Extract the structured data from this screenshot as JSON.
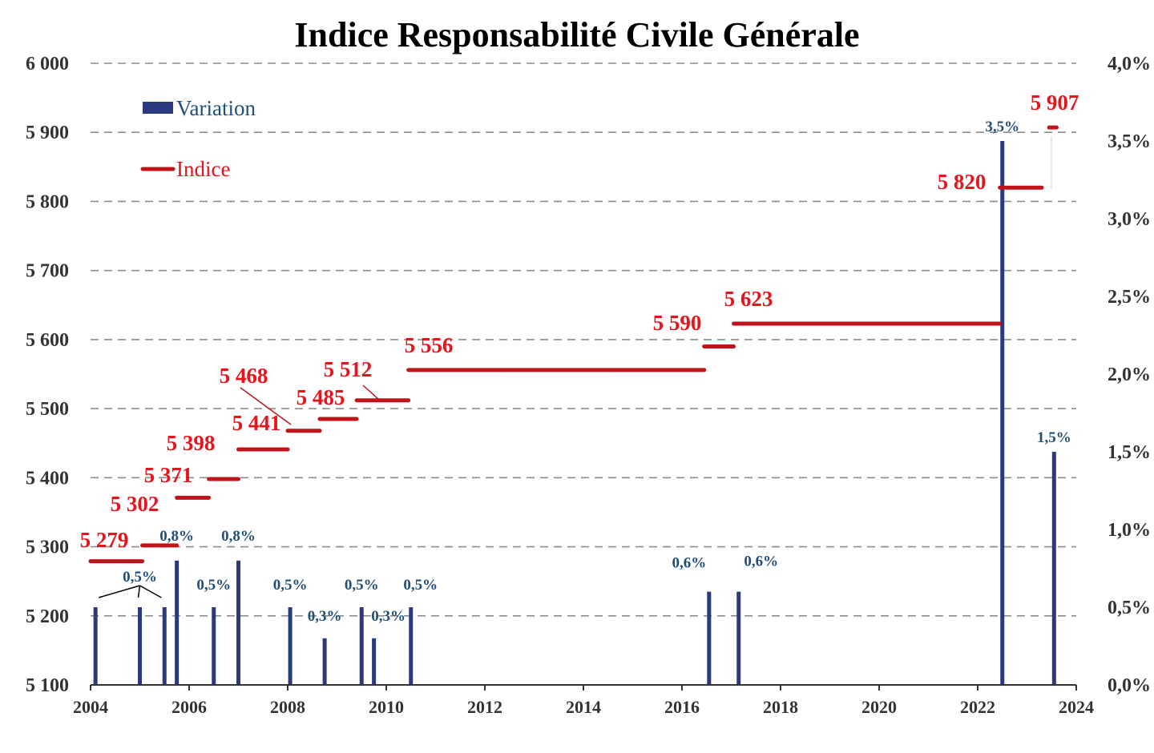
{
  "chart_data": {
    "type": "bar+step-line",
    "title": "Indice Responsabilité Civile Générale",
    "xlim": [
      2004,
      2024
    ],
    "x_ticks": [
      "2004",
      "2006",
      "2008",
      "2010",
      "2012",
      "2014",
      "2016",
      "2018",
      "2020",
      "2022",
      "2024"
    ],
    "y_left": {
      "lim": [
        5100,
        6000
      ],
      "ticks": [
        "5 100",
        "5 200",
        "5 300",
        "5 400",
        "5 500",
        "5 600",
        "5 700",
        "5 800",
        "5 900",
        "6 000"
      ],
      "grid": "dashed"
    },
    "y_right": {
      "lim": [
        0,
        4.0
      ],
      "ticks": [
        "0,0%",
        "0,5%",
        "1,0%",
        "1,5%",
        "2,0%",
        "2,5%",
        "3,0%",
        "3,5%",
        "4,0%"
      ]
    },
    "legend": [
      {
        "name": "Variation",
        "color": "#2b3a7e",
        "kind": "bar"
      },
      {
        "name": "Indice",
        "color": "#c0141a",
        "kind": "line"
      }
    ],
    "legend_position": "top-left",
    "series": [
      {
        "name": "Indice",
        "axis": "left",
        "color": "#c0141a",
        "segments": [
          {
            "start": 2004.0,
            "end": 2005.05,
            "value": 5279,
            "label": "5 279"
          },
          {
            "start": 2005.05,
            "end": 2005.75,
            "value": 5302,
            "label": "5 302"
          },
          {
            "start": 2005.75,
            "end": 2006.4,
            "value": 5371,
            "label": "5 371"
          },
          {
            "start": 2006.4,
            "end": 2007.0,
            "value": 5398,
            "label": "5 398"
          },
          {
            "start": 2007.0,
            "end": 2008.0,
            "value": 5441,
            "label": "5 441"
          },
          {
            "start": 2008.0,
            "end": 2008.65,
            "value": 5468,
            "label": "5 468"
          },
          {
            "start": 2008.65,
            "end": 2009.4,
            "value": 5485,
            "label": "5 485"
          },
          {
            "start": 2009.4,
            "end": 2010.45,
            "value": 5512,
            "label": "5 512"
          },
          {
            "start": 2010.45,
            "end": 2016.45,
            "value": 5556,
            "label": "5 556"
          },
          {
            "start": 2016.45,
            "end": 2017.05,
            "value": 5590,
            "label": "5 590"
          },
          {
            "start": 2017.05,
            "end": 2022.45,
            "value": 5623,
            "label": "5 623"
          },
          {
            "start": 2022.45,
            "end": 2023.3,
            "value": 5820,
            "label": "5 820"
          },
          {
            "start": 2023.45,
            "end": 2023.6,
            "value": 5907,
            "label": "5 907"
          }
        ]
      },
      {
        "name": "Variation",
        "axis": "right",
        "color": "#2b3a7e",
        "bars": [
          {
            "x": 2004.1,
            "value": 0.5
          },
          {
            "x": 2005.0,
            "value": 0.5,
            "label": "0,5%"
          },
          {
            "x": 2005.5,
            "value": 0.5
          },
          {
            "x": 2005.75,
            "value": 0.8,
            "label": "0,8%"
          },
          {
            "x": 2006.5,
            "value": 0.5,
            "label": "0,5%"
          },
          {
            "x": 2007.0,
            "value": 0.8,
            "label": "0,8%"
          },
          {
            "x": 2008.05,
            "value": 0.5,
            "label": "0,5%"
          },
          {
            "x": 2008.75,
            "value": 0.3,
            "label": "0,3%"
          },
          {
            "x": 2009.5,
            "value": 0.5,
            "label": "0,5%"
          },
          {
            "x": 2009.75,
            "value": 0.3,
            "label": "0,3%"
          },
          {
            "x": 2010.5,
            "value": 0.5,
            "label": "0,5%"
          },
          {
            "x": 2016.55,
            "value": 0.6,
            "label": "0,6%"
          },
          {
            "x": 2017.15,
            "value": 0.6,
            "label": "0,6%"
          },
          {
            "x": 2022.5,
            "value": 3.5,
            "label": "3,5%"
          },
          {
            "x": 2023.55,
            "value": 1.5,
            "label": "1,5%"
          }
        ]
      }
    ]
  }
}
